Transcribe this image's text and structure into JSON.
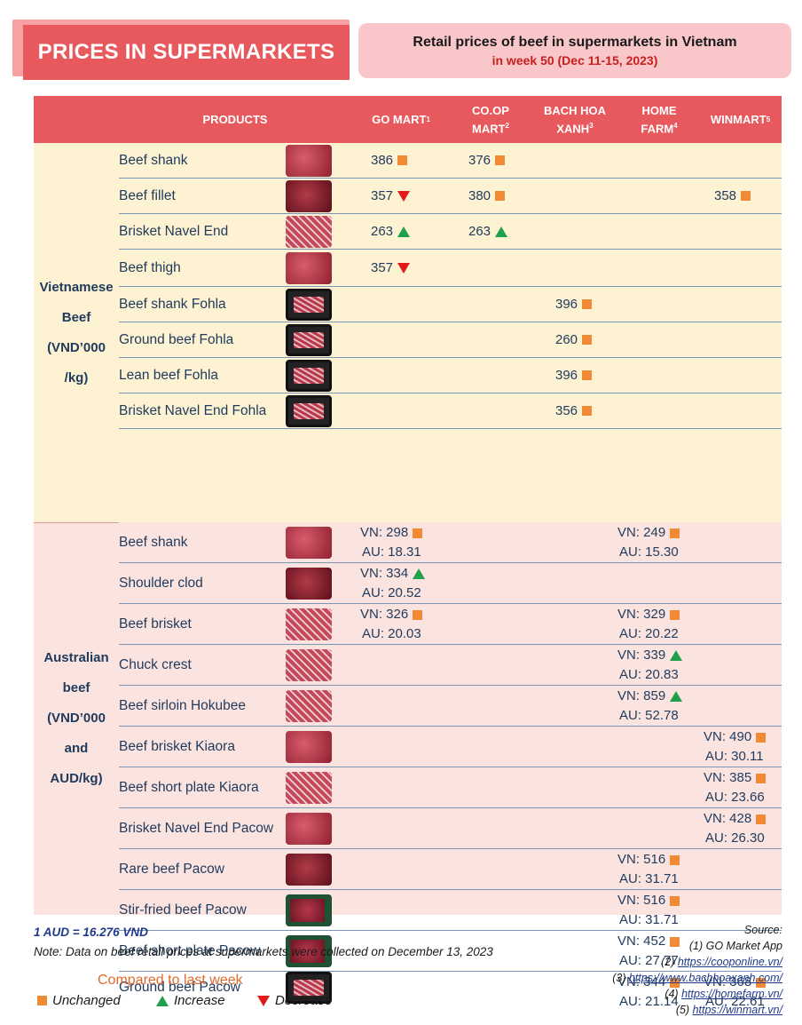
{
  "banner": {
    "title": "PRICES IN SUPERMARKETS"
  },
  "heading": {
    "line1": "Retail prices of beef in supermarkets in Vietnam",
    "line2": "in week 50 (Dec 11-15, 2023)"
  },
  "columns": {
    "products": "PRODUCTS",
    "gomart": {
      "label": "GO MART",
      "sup": "1"
    },
    "coop": {
      "line1": "CO.OP",
      "line2": "MART",
      "sup": "2"
    },
    "bhx": {
      "line1": "BACH HOA",
      "line2": "XANH",
      "sup": "3"
    },
    "home": {
      "line1": "HOME",
      "line2": "FARM",
      "sup": "4"
    },
    "win": {
      "label": "WINMART",
      "sup": "5"
    }
  },
  "vn_section": {
    "lines": [
      "Vietnamese",
      "Beef",
      "(VND’000",
      "/kg)"
    ]
  },
  "au_section": {
    "lines": [
      "Australian",
      "beef",
      "(VND’000",
      "and",
      "AUD/kg)"
    ]
  },
  "vn_rows": [
    {
      "name": "Beef shank",
      "gomart": "386",
      "gomart_t": "sq",
      "coop": "376",
      "coop_t": "sq"
    },
    {
      "name": "Beef fillet",
      "gomart": "357",
      "gomart_t": "dn",
      "coop": "380",
      "coop_t": "sq",
      "win": "358",
      "win_t": "sq"
    },
    {
      "name": "Brisket Navel End",
      "gomart": "263",
      "gomart_t": "up",
      "coop": "263",
      "coop_t": "up"
    },
    {
      "name": "Beef thigh",
      "gomart": "357",
      "gomart_t": "dn"
    },
    {
      "name": "Beef shank Fohla",
      "bhx": "396",
      "bhx_t": "sq"
    },
    {
      "name": "Ground beef Fohla",
      "bhx": "260",
      "bhx_t": "sq"
    },
    {
      "name": "Lean beef Fohla",
      "bhx": "396",
      "bhx_t": "sq"
    },
    {
      "name": "Brisket Navel End Fohla",
      "bhx": "356",
      "bhx_t": "sq"
    }
  ],
  "au_rows": [
    {
      "name": "Beef shank",
      "gomart": {
        "vn": "VN: 298",
        "au": "AU: 18.31",
        "t": "sq"
      },
      "home": {
        "vn": "VN: 249",
        "au": "AU: 15.30",
        "t": "sq"
      }
    },
    {
      "name": "Shoulder clod",
      "gomart": {
        "vn": "VN: 334",
        "au": "AU: 20.52",
        "t": "up"
      }
    },
    {
      "name": "Beef brisket",
      "gomart": {
        "vn": "VN: 326",
        "au": "AU: 20.03",
        "t": "sq"
      },
      "home": {
        "vn": "VN: 329",
        "au": "AU: 20.22",
        "t": "sq"
      }
    },
    {
      "name": "Chuck crest",
      "home": {
        "vn": "VN: 339",
        "au": "AU: 20.83",
        "t": "up"
      }
    },
    {
      "name": "Beef sirloin Hokubee",
      "home": {
        "vn": "VN: 859",
        "au": "AU: 52.78",
        "t": "up"
      }
    },
    {
      "name": "Beef brisket Kiaora",
      "win": {
        "vn": "VN: 490",
        "au": "AU: 30.11",
        "t": "sq"
      }
    },
    {
      "name": "Beef short plate Kiaora",
      "win": {
        "vn": "VN: 385",
        "au": "AU: 23.66",
        "t": "sq"
      }
    },
    {
      "name": "Brisket Navel End Pacow",
      "win": {
        "vn": "VN: 428",
        "au": "AU: 26.30",
        "t": "sq"
      }
    },
    {
      "name": "Rare beef Pacow",
      "home": {
        "vn": "VN: 516",
        "au": "AU: 31.71",
        "t": "sq"
      }
    },
    {
      "name": "Stir-fried beef Pacow",
      "home": {
        "vn": "VN: 516",
        "au": "AU: 31.71",
        "t": "sq"
      }
    },
    {
      "name": "Beef short plate Pacow",
      "home": {
        "vn": "VN: 452",
        "au": "AU: 27.77",
        "t": "sq"
      }
    },
    {
      "name": "Ground beef Pacow",
      "home": {
        "vn": "VN: 344",
        "au": "AU: 21.14",
        "t": "sq"
      },
      "win": {
        "vn": "VN: 368",
        "au": "AU: 22.61",
        "t": "sq"
      }
    }
  ],
  "footer": {
    "rate": "1 AUD = 16.276 VND",
    "note": "Note: Data on beef retail prices at supermarkets were collected on December 13, 2023",
    "legend_title": "Compared to last week",
    "unchanged": "Unchanged",
    "increase": "Increase",
    "decrease": "Decrease"
  },
  "sources": {
    "title": "Source:",
    "s1": "(1) GO Market App",
    "s2p": "(2) ",
    "s2": "https://cooponline.vn/",
    "s3p": "(3) ",
    "s3": "https://www.bachhoaxanh.com/",
    "s4p": "(4) ",
    "s4": "https://homefarm.vn/",
    "s5p": "(5) ",
    "s5": "https://winmart.vn/"
  },
  "colors": {
    "header": "#e8595d",
    "vn_bg": "#fdf2d2",
    "au_bg": "#fbe4e0",
    "unchanged": "#f08a34",
    "increase": "#1fa04a",
    "decrease": "#e11919"
  }
}
